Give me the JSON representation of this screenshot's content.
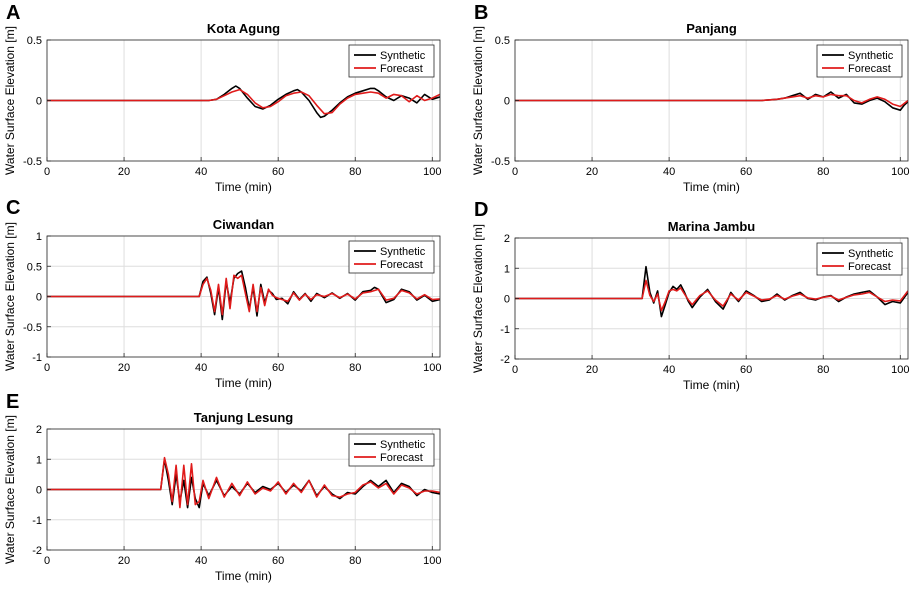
{
  "chart_data": [
    {
      "panel": "A",
      "title": "Kota Agung",
      "type": "line",
      "xlabel": "Time (min)",
      "ylabel": "Water Surface Elevation [m]",
      "xlim": [
        0,
        102
      ],
      "ylim": [
        -0.5,
        0.5
      ],
      "xticks": [
        0,
        20,
        40,
        60,
        80,
        100
      ],
      "yticks": [
        -0.5,
        0,
        0.5
      ],
      "ytick_labels": [
        "-0.5",
        "0",
        "0.5"
      ],
      "series": [
        {
          "name": "Synthetic",
          "color": "#000000",
          "x": [
            0,
            42,
            44,
            46,
            48,
            49,
            50,
            52,
            54,
            56,
            58,
            60,
            62,
            64,
            65,
            66,
            68,
            70,
            71,
            72,
            74,
            76,
            78,
            80,
            82,
            84,
            85,
            86,
            88,
            90,
            92,
            94,
            96,
            98,
            100,
            102
          ],
          "y": [
            0,
            0,
            0.01,
            0.05,
            0.1,
            0.12,
            0.1,
            0.02,
            -0.05,
            -0.07,
            -0.04,
            0.01,
            0.05,
            0.08,
            0.09,
            0.07,
            0,
            -0.1,
            -0.14,
            -0.13,
            -0.08,
            -0.02,
            0.03,
            0.06,
            0.08,
            0.1,
            0.1,
            0.08,
            0.03,
            0,
            0.04,
            0.02,
            -0.02,
            0.05,
            0.01,
            0.03
          ]
        },
        {
          "name": "Forecast",
          "color": "#e01b1b",
          "x": [
            0,
            42,
            44,
            46,
            48,
            50,
            52,
            54,
            56,
            58,
            60,
            62,
            64,
            66,
            68,
            70,
            72,
            74,
            76,
            78,
            80,
            82,
            84,
            86,
            88,
            90,
            92,
            94,
            96,
            98,
            100,
            102
          ],
          "y": [
            0,
            0,
            0.01,
            0.04,
            0.07,
            0.09,
            0.05,
            -0.02,
            -0.06,
            -0.05,
            -0.01,
            0.04,
            0.06,
            0.07,
            0.04,
            -0.04,
            -0.11,
            -0.1,
            -0.03,
            0.02,
            0.05,
            0.06,
            0.07,
            0.06,
            0.02,
            0.05,
            0.04,
            -0.01,
            0.04,
            0,
            0.02,
            0.05
          ]
        }
      ]
    },
    {
      "panel": "B",
      "title": "Panjang",
      "type": "line",
      "xlabel": "Time (min)",
      "ylabel": "Water Surface Elevation [m]",
      "xlim": [
        0,
        102
      ],
      "ylim": [
        -0.5,
        0.5
      ],
      "xticks": [
        0,
        20,
        40,
        60,
        80,
        100
      ],
      "yticks": [
        -0.5,
        0,
        0.5
      ],
      "ytick_labels": [
        "-0.5",
        "0",
        "0.5"
      ],
      "series": [
        {
          "name": "Synthetic",
          "color": "#000000",
          "x": [
            0,
            64,
            68,
            70,
            72,
            74,
            76,
            78,
            80,
            82,
            84,
            86,
            88,
            90,
            92,
            94,
            96,
            98,
            100,
            101,
            102
          ],
          "y": [
            0,
            0,
            0.01,
            0.02,
            0.04,
            0.06,
            0.01,
            0.05,
            0.03,
            0.07,
            0.02,
            0.05,
            -0.02,
            -0.03,
            0,
            0.02,
            -0.01,
            -0.06,
            -0.08,
            -0.04,
            -0.01
          ]
        },
        {
          "name": "Forecast",
          "color": "#e01b1b",
          "x": [
            0,
            64,
            68,
            70,
            72,
            74,
            76,
            78,
            80,
            82,
            84,
            86,
            88,
            90,
            92,
            94,
            96,
            98,
            100,
            102
          ],
          "y": [
            0,
            0,
            0.01,
            0.02,
            0.03,
            0.04,
            0.02,
            0.04,
            0.03,
            0.05,
            0.04,
            0.04,
            0,
            -0.02,
            0.01,
            0.03,
            0.01,
            -0.03,
            -0.05,
            0
          ]
        }
      ]
    },
    {
      "panel": "C",
      "title": "Ciwandan",
      "type": "line",
      "xlabel": "Time (min)",
      "ylabel": "Water Surface Elevation [m]",
      "xlim": [
        0,
        102
      ],
      "ylim": [
        -1,
        1
      ],
      "xticks": [
        0,
        20,
        40,
        60,
        80,
        100
      ],
      "yticks": [
        -1,
        -0.5,
        0,
        0.5,
        1
      ],
      "ytick_labels": [
        "-1",
        "-0.5",
        "0",
        "0.5",
        "1"
      ],
      "series": [
        {
          "name": "Synthetic",
          "color": "#000000",
          "x": [
            0,
            39.5,
            40.5,
            41.5,
            42.5,
            43.5,
            44.5,
            45.5,
            46.5,
            47.5,
            48.5,
            49.5,
            50.5,
            51.5,
            52.5,
            53.5,
            54.5,
            55.5,
            56.5,
            57.5,
            58.5,
            59.5,
            61,
            62.5,
            64,
            65.5,
            67,
            68.5,
            70,
            72,
            74,
            76,
            78,
            80,
            82,
            84,
            85,
            86,
            88,
            90,
            92,
            94,
            96,
            98,
            100,
            102
          ],
          "y": [
            0,
            0,
            0.25,
            0.32,
            0.05,
            -0.3,
            0.15,
            -0.38,
            0.25,
            -0.1,
            0.3,
            0.38,
            0.42,
            0.15,
            -0.2,
            0.15,
            -0.32,
            0.2,
            -0.1,
            0.1,
            0.05,
            -0.05,
            -0.03,
            -0.12,
            0.08,
            -0.05,
            0.05,
            -0.08,
            0.05,
            -0.02,
            0.06,
            -0.03,
            0.05,
            -0.06,
            0.08,
            0.1,
            0.15,
            0.12,
            -0.1,
            -0.05,
            0.12,
            0.08,
            -0.06,
            0.02,
            -0.08,
            -0.05
          ]
        },
        {
          "name": "Forecast",
          "color": "#e01b1b",
          "x": [
            0,
            39.5,
            40.5,
            41.5,
            42.5,
            43.5,
            44.5,
            45.5,
            46.5,
            47.5,
            48.5,
            49.5,
            50.5,
            51.5,
            52.5,
            53.5,
            54.5,
            55.5,
            56.5,
            57.5,
            58.5,
            59.5,
            61,
            62.5,
            64,
            65.5,
            67,
            68.5,
            70,
            72,
            74,
            76,
            78,
            80,
            82,
            84,
            86,
            88,
            90,
            92,
            94,
            96,
            98,
            100,
            102
          ],
          "y": [
            0,
            0,
            0.2,
            0.3,
            0.1,
            -0.25,
            0.2,
            -0.3,
            0.3,
            -0.2,
            0.35,
            0.3,
            0.35,
            0.05,
            -0.25,
            0.2,
            -0.25,
            0.15,
            -0.15,
            0.12,
            0.02,
            -0.02,
            -0.05,
            -0.08,
            0.06,
            -0.06,
            0.04,
            -0.05,
            0.03,
            0,
            0.05,
            -0.02,
            0.04,
            -0.04,
            0.06,
            0.08,
            0.12,
            -0.06,
            -0.03,
            0.1,
            0.06,
            -0.04,
            0.03,
            -0.05,
            -0.04
          ]
        }
      ]
    },
    {
      "panel": "D",
      "title": "Marina Jambu",
      "type": "line",
      "xlabel": "Time (min)",
      "ylabel": "Water Surface Elevation [m]",
      "xlim": [
        0,
        102
      ],
      "ylim": [
        -2,
        2
      ],
      "xticks": [
        0,
        20,
        40,
        60,
        80,
        100
      ],
      "yticks": [
        -2,
        -1,
        0,
        1,
        2
      ],
      "ytick_labels": [
        "-2",
        "-1",
        "0",
        "1",
        "2"
      ],
      "series": [
        {
          "name": "Synthetic",
          "color": "#000000",
          "x": [
            0,
            33,
            34,
            35,
            36,
            37,
            38,
            39,
            40,
            41,
            42,
            43,
            44,
            45,
            46,
            48,
            50,
            52,
            54,
            55,
            56,
            57,
            58,
            60,
            62,
            64,
            66,
            68,
            70,
            72,
            74,
            76,
            78,
            80,
            82,
            84,
            86,
            88,
            90,
            92,
            94,
            96,
            98,
            100,
            102
          ],
          "y": [
            0,
            0,
            1.05,
            0.2,
            -0.15,
            0.25,
            -0.6,
            -0.2,
            0.2,
            0.4,
            0.3,
            0.45,
            0.2,
            -0.1,
            -0.3,
            0.05,
            0.3,
            -0.1,
            -0.35,
            -0.1,
            0.2,
            0.05,
            -0.1,
            0.25,
            0.1,
            -0.1,
            -0.05,
            0.15,
            -0.05,
            0.1,
            0.2,
            0,
            -0.05,
            0.05,
            0.1,
            -0.1,
            0.05,
            0.15,
            0.2,
            0.25,
            0.05,
            -0.2,
            -0.1,
            -0.15,
            0.2
          ]
        },
        {
          "name": "Forecast",
          "color": "#e01b1b",
          "x": [
            0,
            33,
            34,
            35,
            36,
            37,
            38,
            39,
            40,
            41,
            42,
            43,
            44,
            45,
            46,
            48,
            50,
            52,
            54,
            56,
            58,
            60,
            62,
            64,
            66,
            68,
            70,
            72,
            74,
            76,
            78,
            80,
            82,
            84,
            86,
            88,
            90,
            92,
            94,
            96,
            98,
            100,
            102
          ],
          "y": [
            0,
            0,
            0.6,
            0.1,
            -0.1,
            0.15,
            -0.4,
            -0.1,
            0.25,
            0.3,
            0.25,
            0.35,
            0.15,
            -0.05,
            -0.2,
            0.1,
            0.25,
            -0.05,
            -0.25,
            0.15,
            -0.05,
            0.2,
            0.08,
            -0.05,
            -0.02,
            0.1,
            -0.02,
            0.08,
            0.15,
            0.02,
            -0.02,
            0.04,
            0.08,
            -0.05,
            0.04,
            0.12,
            0.15,
            0.2,
            0.05,
            -0.1,
            -0.05,
            -0.08,
            0.25
          ]
        }
      ]
    },
    {
      "panel": "E",
      "title": "Tanjung Lesung",
      "type": "line",
      "xlabel": "Time (min)",
      "ylabel": "Water Surface Elevation [m]",
      "xlim": [
        0,
        102
      ],
      "ylim": [
        -2,
        2
      ],
      "xticks": [
        0,
        20,
        40,
        60,
        80,
        100
      ],
      "yticks": [
        -2,
        -1,
        0,
        1,
        2
      ],
      "ytick_labels": [
        "-2",
        "-1",
        "0",
        "1",
        "2"
      ],
      "series": [
        {
          "name": "Synthetic",
          "color": "#000000",
          "x": [
            0,
            29.5,
            30.5,
            31.5,
            32.5,
            33.5,
            34.5,
            35.5,
            36.5,
            37.5,
            38.5,
            39.5,
            40.5,
            42,
            44,
            46,
            48,
            50,
            52,
            54,
            56,
            58,
            60,
            62,
            64,
            66,
            68,
            70,
            72,
            74,
            76,
            78,
            80,
            82,
            84,
            86,
            88,
            90,
            92,
            94,
            96,
            98,
            100,
            102
          ],
          "y": [
            0,
            0,
            1.0,
            0.3,
            -0.5,
            0.5,
            -0.4,
            0.3,
            -0.6,
            0.4,
            -0.3,
            -0.6,
            0.2,
            -0.2,
            0.3,
            -0.2,
            0.1,
            -0.15,
            0.2,
            -0.1,
            0.1,
            0,
            0.2,
            -0.1,
            0.15,
            -0.05,
            0.3,
            -0.2,
            0.1,
            -0.15,
            -0.3,
            -0.1,
            -0.15,
            0.1,
            0.3,
            0.1,
            0.3,
            -0.1,
            0.2,
            0.1,
            -0.2,
            0,
            -0.1,
            -0.15
          ]
        },
        {
          "name": "Forecast",
          "color": "#e01b1b",
          "x": [
            0,
            29.5,
            30.5,
            31.5,
            32.5,
            33.5,
            34.5,
            35.5,
            36.5,
            37.5,
            38.5,
            39.5,
            40.5,
            42,
            44,
            46,
            48,
            50,
            52,
            54,
            56,
            58,
            60,
            62,
            64,
            66,
            68,
            70,
            72,
            74,
            76,
            78,
            80,
            82,
            84,
            86,
            88,
            90,
            92,
            94,
            96,
            98,
            100,
            102
          ],
          "y": [
            0,
            0,
            1.05,
            0.5,
            -0.4,
            0.8,
            -0.6,
            0.8,
            -0.5,
            0.85,
            -0.5,
            -0.4,
            0.3,
            -0.3,
            0.4,
            -0.25,
            0.2,
            -0.2,
            0.25,
            -0.15,
            0.05,
            -0.05,
            0.25,
            -0.15,
            0.2,
            -0.1,
            0.3,
            -0.25,
            0.15,
            -0.2,
            -0.25,
            -0.15,
            -0.1,
            0.15,
            0.25,
            0.05,
            0.2,
            -0.15,
            0.15,
            0.05,
            -0.15,
            -0.05,
            -0.05,
            -0.1
          ]
        }
      ]
    }
  ]
}
